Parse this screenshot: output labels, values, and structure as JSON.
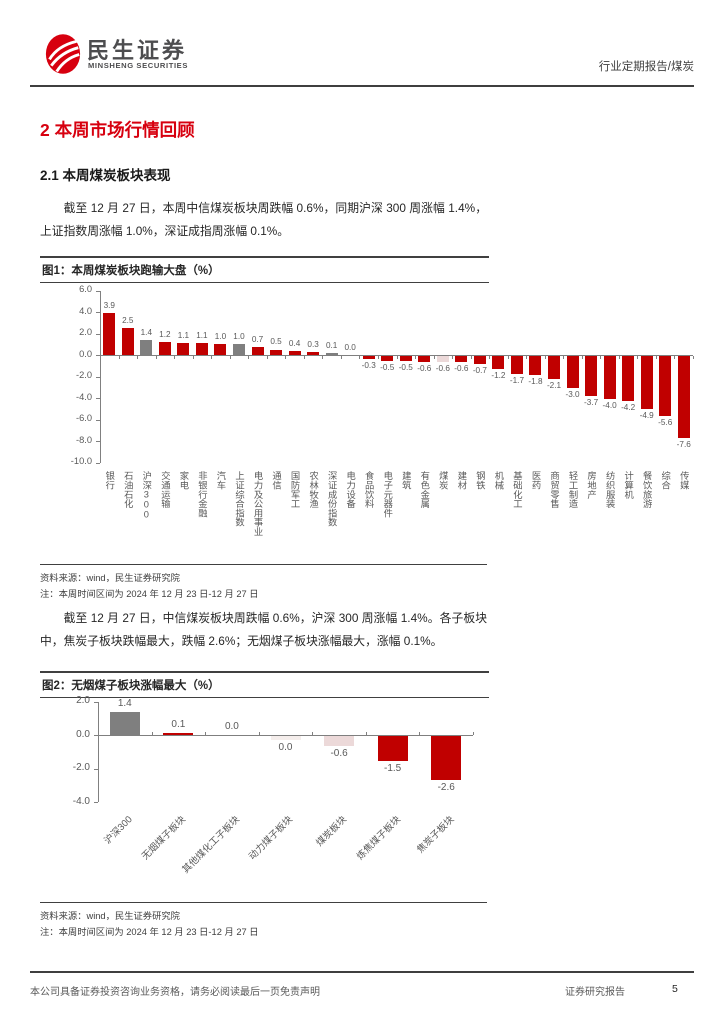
{
  "header": {
    "brand_cn": "民生证券",
    "brand_en": "MINSHENG SECURITIES",
    "doc_type": "行业定期报告/煤炭"
  },
  "section_title": "2 本周市场行情回顾",
  "subsection_title": "2.1 本周煤炭板块表现",
  "paragraphs": {
    "p1": "截至 12 月 27 日，本周中信煤炭板块周跌幅 0.6%，同期沪深 300 周涨幅 1.4%，上证指数周涨幅 1.0%，深证成指周涨幅 0.1%。",
    "p2": "截至 12 月 27 日，中信煤炭板块周跌幅 0.6%，沪深 300 周涨幅 1.4%。各子板块中，焦炭子板块跌幅最大，跌幅 2.6%；无烟煤子板块涨幅最大，涨幅 0.1%。"
  },
  "figures": [
    {
      "title": "图1：本周煤炭板块跑输大盘（%）",
      "source": "资料来源：wind，民生证券研究院",
      "note": "注：本周时间区间为 2024 年 12 月 23 日-12 月 27 日"
    },
    {
      "title": "图2：无烟煤子板块涨幅最大（%）",
      "source": "资料来源：wind，民生证券研究院",
      "note": "注：本周时间区间为 2024 年 12 月 23 日-12 月 27 日"
    }
  ],
  "footer": {
    "disclaimer": "本公司具备证券投资咨询业务资格，请务必阅读最后一页免责声明",
    "report_type": "证券研究报告",
    "page_number": "5"
  },
  "colors": {
    "brand_red": "#d7000f",
    "heading_red": "#d7000f",
    "bar_palette": {
      "red": "#c00000",
      "gray": "#7f7f7f",
      "pink": "#ecd9d9",
      "pale": "#f5eeec"
    },
    "axis_gray": "#808080",
    "label_gray": "#595959"
  },
  "chart_data": [
    {
      "type": "bar",
      "title": "本周煤炭板块跑输大盘（%）",
      "ylabel": "",
      "xlabel": "",
      "ylim": [
        -10.0,
        6.0
      ],
      "yticks": [
        6.0,
        4.0,
        2.0,
        0.0,
        -2.0,
        -4.0,
        -6.0,
        -8.0,
        -10.0
      ],
      "grid": false,
      "legend": "none",
      "categories": [
        "银行",
        "石油石化",
        "沪深300",
        "交通运输",
        "家电",
        "非银行金融",
        "汽车",
        "上证综合指数",
        "电力及公用事业",
        "通信",
        "国防军工",
        "农林牧渔",
        "深证成份指数",
        "电力设备",
        "食品饮料",
        "电子元器件",
        "建筑",
        "有色金属",
        "煤炭",
        "建材",
        "钢铁",
        "机械",
        "基础化工",
        "医药",
        "商贸零售",
        "轻工制造",
        "房地产",
        "纺织服装",
        "计算机",
        "餐饮旅游",
        "综合",
        "传媒"
      ],
      "values": [
        3.9,
        2.5,
        1.4,
        1.2,
        1.1,
        1.1,
        1.0,
        1.0,
        0.7,
        0.5,
        0.4,
        0.3,
        0.1,
        0.0,
        -0.3,
        -0.5,
        -0.5,
        -0.6,
        -0.6,
        -0.6,
        -0.7,
        -1.2,
        -1.7,
        -1.8,
        -2.1,
        -3.0,
        -3.7,
        -4.0,
        -4.2,
        -4.9,
        -5.6,
        -7.6
      ],
      "bar_colors": [
        "red",
        "red",
        "gray",
        "red",
        "red",
        "red",
        "red",
        "gray",
        "red",
        "red",
        "red",
        "red",
        "gray",
        "none",
        "red",
        "red",
        "red",
        "red",
        "pink",
        "red",
        "red",
        "red",
        "red",
        "red",
        "red",
        "red",
        "red",
        "red",
        "red",
        "red",
        "red",
        "red"
      ]
    },
    {
      "type": "bar",
      "title": "无烟煤子板块涨幅最大（%）",
      "ylabel": "",
      "xlabel": "",
      "ylim": [
        -4.0,
        2.0
      ],
      "yticks": [
        2.0,
        0.0,
        -2.0,
        -4.0
      ],
      "grid": false,
      "legend": "none",
      "categories": [
        "沪深300",
        "无烟煤子板块",
        "其他煤化工子板块",
        "动力煤子板块",
        "煤炭板块",
        "炼焦煤子板块",
        "焦炭子板块"
      ],
      "values": [
        1.4,
        0.1,
        0.0,
        0.0,
        -0.6,
        -1.5,
        -2.6
      ],
      "bar_colors": [
        "gray",
        "red",
        "none",
        "pale",
        "pink",
        "red",
        "red"
      ],
      "label_below": [
        false,
        false,
        false,
        true,
        true,
        true,
        true
      ]
    }
  ]
}
